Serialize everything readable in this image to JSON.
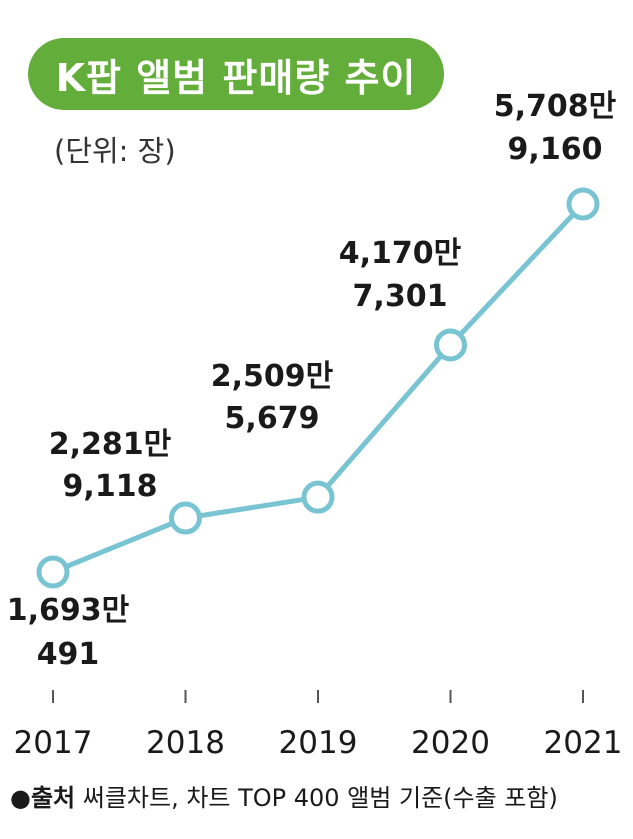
{
  "title": "K팝 앨범 판매량 추이",
  "unit_note": "(단위: 장)",
  "source": {
    "bullet": "●",
    "head": "출처",
    "text": " 써클차트, 차트 TOP 400 앨범 기준(수출 포함)"
  },
  "colors": {
    "title_bg": "#63ad3a",
    "line": "#79c4d3",
    "marker_fill": "#ffffff"
  },
  "chart_data": {
    "type": "line",
    "title": "K팝 앨범 판매량 추이",
    "xlabel": "",
    "ylabel": "",
    "unit": "장",
    "categories": [
      "2017",
      "2018",
      "2019",
      "2020",
      "2021"
    ],
    "values": [
      16930491,
      22819118,
      25095679,
      41707301,
      57089160
    ],
    "data_labels": [
      [
        "1,693만",
        "491"
      ],
      [
        "2,281만",
        "9,118"
      ],
      [
        "2,509만",
        "5,679"
      ],
      [
        "4,170만",
        "7,301"
      ],
      [
        "5,708만",
        "9,160"
      ]
    ],
    "grid": false,
    "legend": "none"
  }
}
